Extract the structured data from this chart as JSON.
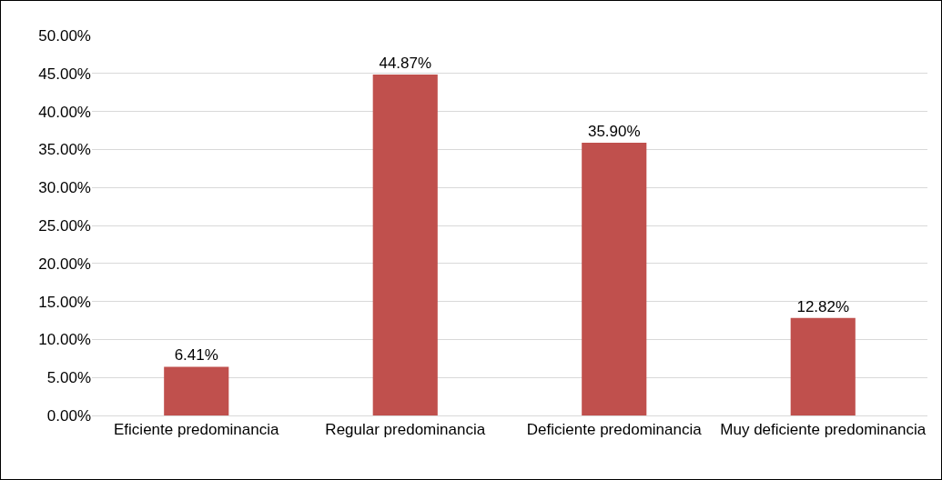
{
  "chart_data": {
    "type": "bar",
    "categories": [
      "Eficiente predominancia",
      "Regular predominancia",
      "Deficiente predominancia",
      "Muy deficiente predominancia"
    ],
    "values": [
      6.41,
      44.87,
      35.9,
      12.82
    ],
    "value_labels": [
      "6.41%",
      "44.87%",
      "35.90%",
      "12.82%"
    ],
    "color": "#c0504d",
    "ylim": [
      0,
      50
    ],
    "yticks": [
      {
        "value": 0,
        "label": "0.00%"
      },
      {
        "value": 5,
        "label": "5.00%"
      },
      {
        "value": 10,
        "label": "10.00%"
      },
      {
        "value": 15,
        "label": "15.00%"
      },
      {
        "value": 20,
        "label": "20.00%"
      },
      {
        "value": 25,
        "label": "25.00%"
      },
      {
        "value": 30,
        "label": "30.00%"
      },
      {
        "value": 35,
        "label": "35.00%"
      },
      {
        "value": 40,
        "label": "40.00%"
      },
      {
        "value": 45,
        "label": "45.00%"
      },
      {
        "value": 50,
        "label": "50.00%"
      }
    ],
    "grid": "y",
    "legend": false
  }
}
